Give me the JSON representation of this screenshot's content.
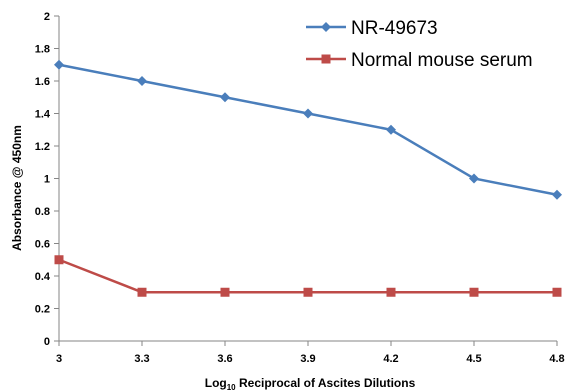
{
  "chart_data": {
    "type": "line",
    "title": "",
    "xlabel": {
      "prefix": "Log",
      "subscript": "10",
      "rest": " Reciprocal of Ascites Dilutions"
    },
    "ylabel": "Absorbance @ 450nm",
    "x": [
      3,
      3.3,
      3.6,
      3.9,
      4.2,
      4.5,
      4.8
    ],
    "x_tick_labels": [
      "3",
      "3.3",
      "3.6",
      "3.9",
      "4.2",
      "4.5",
      "4.8"
    ],
    "xlim": [
      3,
      4.8
    ],
    "ylim": [
      0,
      2
    ],
    "y_ticks": [
      0,
      0.2,
      0.4,
      0.6,
      0.8,
      1,
      1.2,
      1.4,
      1.6,
      1.8,
      2
    ],
    "y_tick_labels": [
      "0",
      "0.2",
      "0.4",
      "0.6",
      "0.8",
      "1",
      "1.2",
      "1.4",
      "1.6",
      "1.8",
      "2"
    ],
    "grid": false,
    "legend_position": "top-right",
    "series": [
      {
        "name": "NR-49673",
        "color": "#4a7ebb",
        "marker": "diamond",
        "values": [
          1.7,
          1.6,
          1.5,
          1.4,
          1.3,
          1.0,
          0.9
        ]
      },
      {
        "name": "Normal mouse serum",
        "color": "#be4b48",
        "marker": "square",
        "values": [
          0.5,
          0.3,
          0.3,
          0.3,
          0.3,
          0.3,
          0.3
        ]
      }
    ]
  }
}
